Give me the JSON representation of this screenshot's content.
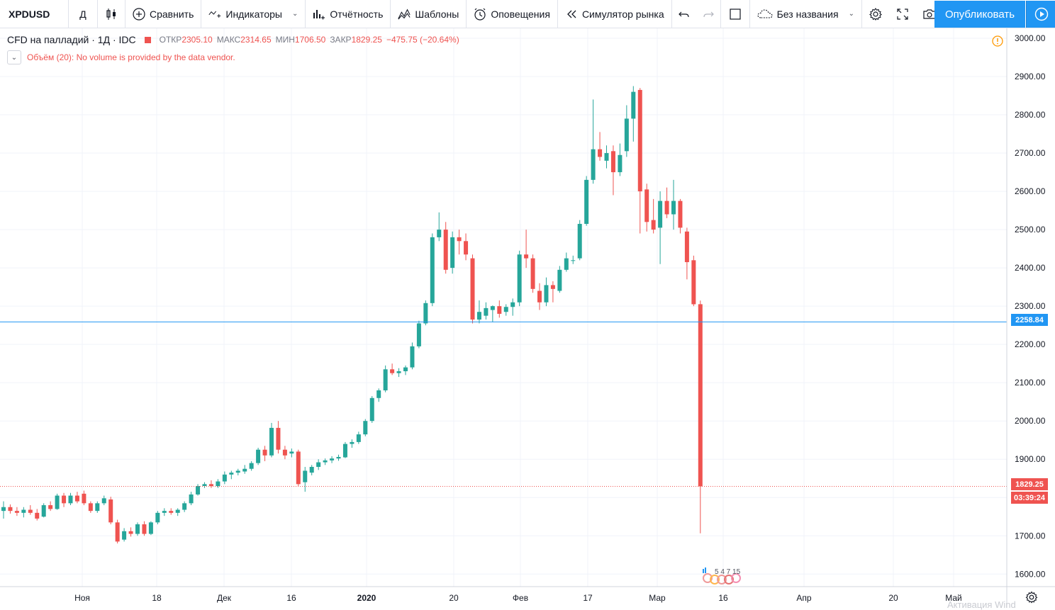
{
  "toolbar": {
    "symbol": "XPDUSD",
    "interval": "Д",
    "compare": "Сравнить",
    "indicators": "Индикаторы",
    "financials": "Отчётность",
    "templates": "Шаблоны",
    "alerts": "Оповещения",
    "replay": "Симулятор рынка",
    "layout_name": "Без названия",
    "publish": "Опубликовать"
  },
  "legend": {
    "title": "CFD на палладий · 1Д · IDC",
    "open_label": "ОТКР",
    "open": "2305.10",
    "high_label": "МАКС",
    "high": "2314.65",
    "low_label": "МИН",
    "low": "1706.50",
    "close_label": "ЗАКР",
    "close": "1829.25",
    "change": "−475.75 (−20.64%)",
    "volume_message": "Объём (20): No volume is provided by the data vendor."
  },
  "price_axis": {
    "labels": [
      "3000.00",
      "2900.00",
      "2800.00",
      "2700.00",
      "2600.00",
      "2500.00",
      "2400.00",
      "2300.00",
      "2200.00",
      "2100.00",
      "2000.00",
      "1900.00",
      "1800.00",
      "1700.00",
      "1600.00"
    ],
    "min": 1560,
    "max": 3020
  },
  "time_axis": {
    "labels": [
      "Ноя",
      "18",
      "Дек",
      "16",
      "2020",
      "20",
      "Фев",
      "17",
      "Мар",
      "16",
      "Апр",
      "20",
      "Май"
    ],
    "bold": [
      "2020"
    ]
  },
  "price_tags": {
    "line_price": "2258.84",
    "last_price": "1829.25",
    "countdown": "03:39:24"
  },
  "events_marker": "5 4 7 15",
  "watermark": "Активация Wind",
  "colors": {
    "up": "#26a69a",
    "down": "#ef5350",
    "line": "#2196f3",
    "grid": "#f0f3fa",
    "accent": "#2196f3"
  },
  "chart_data": {
    "type": "candlestick",
    "symbol": "XPDUSD",
    "interval": "1D",
    "candles": [
      {
        "o": 1765,
        "h": 1790,
        "l": 1745,
        "c": 1775
      },
      {
        "o": 1775,
        "h": 1782,
        "l": 1758,
        "c": 1765
      },
      {
        "o": 1765,
        "h": 1775,
        "l": 1752,
        "c": 1760
      },
      {
        "o": 1760,
        "h": 1775,
        "l": 1748,
        "c": 1768
      },
      {
        "o": 1768,
        "h": 1780,
        "l": 1755,
        "c": 1760
      },
      {
        "o": 1760,
        "h": 1770,
        "l": 1740,
        "c": 1745
      },
      {
        "o": 1750,
        "h": 1785,
        "l": 1748,
        "c": 1780
      },
      {
        "o": 1780,
        "h": 1790,
        "l": 1765,
        "c": 1770
      },
      {
        "o": 1770,
        "h": 1810,
        "l": 1768,
        "c": 1805
      },
      {
        "o": 1805,
        "h": 1812,
        "l": 1775,
        "c": 1785
      },
      {
        "o": 1785,
        "h": 1812,
        "l": 1780,
        "c": 1805
      },
      {
        "o": 1805,
        "h": 1815,
        "l": 1785,
        "c": 1790
      },
      {
        "o": 1810,
        "h": 1818,
        "l": 1780,
        "c": 1785
      },
      {
        "o": 1785,
        "h": 1790,
        "l": 1760,
        "c": 1765
      },
      {
        "o": 1765,
        "h": 1790,
        "l": 1760,
        "c": 1785
      },
      {
        "o": 1785,
        "h": 1805,
        "l": 1780,
        "c": 1798
      },
      {
        "o": 1795,
        "h": 1802,
        "l": 1730,
        "c": 1735
      },
      {
        "o": 1735,
        "h": 1742,
        "l": 1680,
        "c": 1685
      },
      {
        "o": 1690,
        "h": 1720,
        "l": 1685,
        "c": 1712
      },
      {
        "o": 1712,
        "h": 1722,
        "l": 1698,
        "c": 1705
      },
      {
        "o": 1705,
        "h": 1735,
        "l": 1700,
        "c": 1730
      },
      {
        "o": 1730,
        "h": 1738,
        "l": 1700,
        "c": 1705
      },
      {
        "o": 1705,
        "h": 1738,
        "l": 1702,
        "c": 1735
      },
      {
        "o": 1735,
        "h": 1765,
        "l": 1730,
        "c": 1760
      },
      {
        "o": 1760,
        "h": 1772,
        "l": 1752,
        "c": 1765
      },
      {
        "o": 1765,
        "h": 1772,
        "l": 1755,
        "c": 1760
      },
      {
        "o": 1760,
        "h": 1772,
        "l": 1752,
        "c": 1768
      },
      {
        "o": 1768,
        "h": 1790,
        "l": 1762,
        "c": 1785
      },
      {
        "o": 1785,
        "h": 1815,
        "l": 1780,
        "c": 1808
      },
      {
        "o": 1808,
        "h": 1835,
        "l": 1805,
        "c": 1830
      },
      {
        "o": 1830,
        "h": 1840,
        "l": 1825,
        "c": 1835
      },
      {
        "o": 1835,
        "h": 1845,
        "l": 1825,
        "c": 1830
      },
      {
        "o": 1830,
        "h": 1848,
        "l": 1825,
        "c": 1842
      },
      {
        "o": 1842,
        "h": 1868,
        "l": 1835,
        "c": 1860
      },
      {
        "o": 1860,
        "h": 1870,
        "l": 1848,
        "c": 1865
      },
      {
        "o": 1865,
        "h": 1875,
        "l": 1858,
        "c": 1870
      },
      {
        "o": 1868,
        "h": 1885,
        "l": 1862,
        "c": 1875
      },
      {
        "o": 1875,
        "h": 1895,
        "l": 1870,
        "c": 1890
      },
      {
        "o": 1890,
        "h": 1930,
        "l": 1885,
        "c": 1925
      },
      {
        "o": 1925,
        "h": 1935,
        "l": 1895,
        "c": 1910
      },
      {
        "o": 1910,
        "h": 1995,
        "l": 1905,
        "c": 1982
      },
      {
        "o": 1982,
        "h": 2000,
        "l": 1915,
        "c": 1925
      },
      {
        "o": 1925,
        "h": 1935,
        "l": 1900,
        "c": 1910
      },
      {
        "o": 1915,
        "h": 1928,
        "l": 1905,
        "c": 1920
      },
      {
        "o": 1920,
        "h": 1925,
        "l": 1830,
        "c": 1835
      },
      {
        "o": 1840,
        "h": 1880,
        "l": 1815,
        "c": 1870
      },
      {
        "o": 1865,
        "h": 1885,
        "l": 1858,
        "c": 1880
      },
      {
        "o": 1880,
        "h": 1900,
        "l": 1872,
        "c": 1892
      },
      {
        "o": 1892,
        "h": 1902,
        "l": 1885,
        "c": 1897
      },
      {
        "o": 1897,
        "h": 1908,
        "l": 1890,
        "c": 1902
      },
      {
        "o": 1902,
        "h": 1912,
        "l": 1896,
        "c": 1906
      },
      {
        "o": 1905,
        "h": 1945,
        "l": 1903,
        "c": 1940
      },
      {
        "o": 1940,
        "h": 1952,
        "l": 1930,
        "c": 1945
      },
      {
        "o": 1945,
        "h": 1972,
        "l": 1940,
        "c": 1965
      },
      {
        "o": 1965,
        "h": 2005,
        "l": 1960,
        "c": 2000
      },
      {
        "o": 2000,
        "h": 2065,
        "l": 1995,
        "c": 2060
      },
      {
        "o": 2060,
        "h": 2085,
        "l": 2050,
        "c": 2080
      },
      {
        "o": 2080,
        "h": 2145,
        "l": 2075,
        "c": 2135
      },
      {
        "o": 2135,
        "h": 2150,
        "l": 2120,
        "c": 2125
      },
      {
        "o": 2125,
        "h": 2138,
        "l": 2115,
        "c": 2130
      },
      {
        "o": 2130,
        "h": 2145,
        "l": 2120,
        "c": 2140
      },
      {
        "o": 2140,
        "h": 2205,
        "l": 2135,
        "c": 2195
      },
      {
        "o": 2195,
        "h": 2262,
        "l": 2190,
        "c": 2255
      },
      {
        "o": 2255,
        "h": 2315,
        "l": 2250,
        "c": 2308
      },
      {
        "o": 2308,
        "h": 2490,
        "l": 2300,
        "c": 2480
      },
      {
        "o": 2480,
        "h": 2545,
        "l": 2470,
        "c": 2500
      },
      {
        "o": 2500,
        "h": 2520,
        "l": 2385,
        "c": 2395
      },
      {
        "o": 2400,
        "h": 2495,
        "l": 2385,
        "c": 2480
      },
      {
        "o": 2480,
        "h": 2500,
        "l": 2435,
        "c": 2470
      },
      {
        "o": 2470,
        "h": 2490,
        "l": 2420,
        "c": 2435
      },
      {
        "o": 2425,
        "h": 2435,
        "l": 2255,
        "c": 2265
      },
      {
        "o": 2265,
        "h": 2315,
        "l": 2255,
        "c": 2285
      },
      {
        "o": 2275,
        "h": 2310,
        "l": 2265,
        "c": 2295
      },
      {
        "o": 2290,
        "h": 2302,
        "l": 2258,
        "c": 2300
      },
      {
        "o": 2300,
        "h": 2315,
        "l": 2270,
        "c": 2280
      },
      {
        "o": 2285,
        "h": 2305,
        "l": 2275,
        "c": 2298
      },
      {
        "o": 2298,
        "h": 2320,
        "l": 2275,
        "c": 2310
      },
      {
        "o": 2310,
        "h": 2445,
        "l": 2300,
        "c": 2435
      },
      {
        "o": 2435,
        "h": 2500,
        "l": 2400,
        "c": 2425
      },
      {
        "o": 2425,
        "h": 2435,
        "l": 2335,
        "c": 2345
      },
      {
        "o": 2340,
        "h": 2360,
        "l": 2290,
        "c": 2310
      },
      {
        "o": 2310,
        "h": 2375,
        "l": 2300,
        "c": 2355
      },
      {
        "o": 2355,
        "h": 2365,
        "l": 2310,
        "c": 2345
      },
      {
        "o": 2340,
        "h": 2405,
        "l": 2335,
        "c": 2395
      },
      {
        "o": 2395,
        "h": 2440,
        "l": 2390,
        "c": 2425
      },
      {
        "o": 2420,
        "h": 2432,
        "l": 2410,
        "c": 2420
      },
      {
        "o": 2425,
        "h": 2525,
        "l": 2420,
        "c": 2515
      },
      {
        "o": 2515,
        "h": 2640,
        "l": 2510,
        "c": 2630
      },
      {
        "o": 2630,
        "h": 2840,
        "l": 2620,
        "c": 2710
      },
      {
        "o": 2710,
        "h": 2755,
        "l": 2680,
        "c": 2690
      },
      {
        "o": 2680,
        "h": 2720,
        "l": 2660,
        "c": 2700
      },
      {
        "o": 2705,
        "h": 2720,
        "l": 2590,
        "c": 2650
      },
      {
        "o": 2650,
        "h": 2725,
        "l": 2640,
        "c": 2695
      },
      {
        "o": 2705,
        "h": 2825,
        "l": 2690,
        "c": 2790
      },
      {
        "o": 2790,
        "h": 2875,
        "l": 2730,
        "c": 2860
      },
      {
        "o": 2865,
        "h": 2870,
        "l": 2490,
        "c": 2600
      },
      {
        "o": 2605,
        "h": 2620,
        "l": 2495,
        "c": 2520
      },
      {
        "o": 2525,
        "h": 2580,
        "l": 2490,
        "c": 2500
      },
      {
        "o": 2505,
        "h": 2600,
        "l": 2410,
        "c": 2575
      },
      {
        "o": 2575,
        "h": 2610,
        "l": 2530,
        "c": 2540
      },
      {
        "o": 2540,
        "h": 2630,
        "l": 2500,
        "c": 2575
      },
      {
        "o": 2575,
        "h": 2580,
        "l": 2490,
        "c": 2505
      },
      {
        "o": 2495,
        "h": 2505,
        "l": 2370,
        "c": 2415
      },
      {
        "o": 2420,
        "h": 2432,
        "l": 2300,
        "c": 2305
      },
      {
        "o": 2305.1,
        "h": 2314.65,
        "l": 1706.5,
        "c": 1829.25
      }
    ],
    "horizontal_line": 2258.84,
    "last_price": 1829.25
  }
}
